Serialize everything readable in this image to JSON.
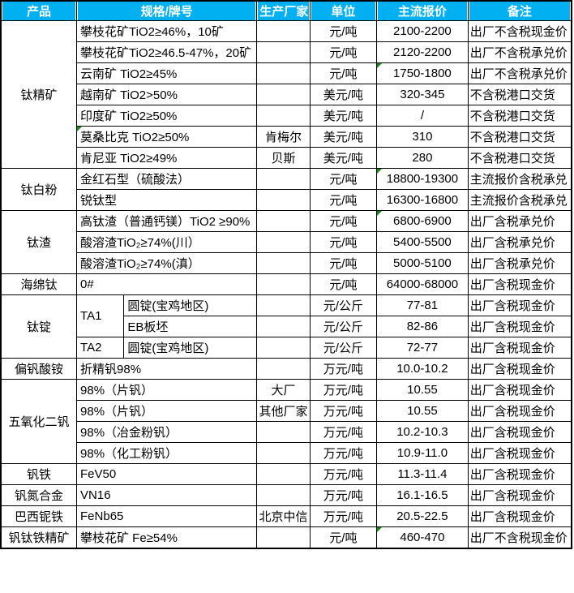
{
  "colors": {
    "header_bg": "#00B0F0",
    "header_text": "#ffffff",
    "grid": "#000000",
    "flag": "#128912"
  },
  "table": {
    "headers": [
      "产品",
      "规格/牌号",
      "生产厂家",
      "单位",
      "主流报价",
      "备注"
    ]
  },
  "groups": [
    {
      "product": "钛精矿",
      "rows": [
        {
          "spec": "攀枝花矿TiO2≥46%，10矿",
          "mfr": "",
          "unit": "元/吨",
          "price": "2100-2200",
          "note": "出厂不含税现金价"
        },
        {
          "spec": "攀枝花矿TiO2≥46.5-47%，20矿",
          "mfr": "",
          "unit": "元/吨",
          "price": "2120-2200",
          "note": "出厂不含税承兑价"
        },
        {
          "spec": "云南矿 TiO2≥45%",
          "mfr": "",
          "unit": "元/吨",
          "price": "1750-1800",
          "note": "出厂不含税承兑价",
          "flag": "comment-indicator-on-price"
        },
        {
          "spec": "越南矿 TiO2>50%",
          "mfr": "",
          "unit": "美元/吨",
          "price": "320-345",
          "note": "不含税港口交货"
        },
        {
          "spec": "印度矿 TiO2≥50%",
          "mfr": "",
          "unit": "美元/吨",
          "price": "/",
          "note": "不含税港口交货"
        },
        {
          "spec": "莫桑比克 TiO2≥50%",
          "mfr": "肯梅尔",
          "unit": "美元/吨",
          "price": "310",
          "note": "不含税港口交货",
          "flag": "comment-indicator-on-spec"
        },
        {
          "spec": "肯尼亚 TiO2≥49%",
          "mfr": "贝斯",
          "unit": "美元/吨",
          "price": "280",
          "note": "不含税港口交货"
        }
      ]
    },
    {
      "product": "钛白粉",
      "rows": [
        {
          "spec": "金红石型（硫酸法）",
          "mfr": "",
          "unit": "元/吨",
          "price": "18800-19300",
          "note": "主流报价含税承兑",
          "flag": "comment-indicator-on-price"
        },
        {
          "spec": "锐钛型",
          "mfr": "",
          "unit": "元/吨",
          "price": "16300-16800",
          "note": "主流报价含税承兑"
        }
      ]
    },
    {
      "product": "钛渣",
      "rows": [
        {
          "spec": "高钛渣（普通钙镁）TiO2 ≥90%",
          "mfr": "",
          "unit": "元/吨",
          "price": "6800-6900",
          "note": "出厂含税承兑价",
          "flag": "comment-indicator-on-price"
        },
        {
          "spec": "酸溶渣TiO₂≥74%(川）",
          "mfr": "",
          "unit": "元/吨",
          "price": "5400-5500",
          "note": "出厂含税承兑价"
        },
        {
          "spec": "酸溶渣TiO₂≥74%(滇）",
          "mfr": "",
          "unit": "元/吨",
          "price": "5000-5100",
          "note": "出厂含税承兑价"
        }
      ]
    },
    {
      "product": "海绵钛",
      "rows": [
        {
          "spec": "0#",
          "mfr": "",
          "unit": "元/吨",
          "price": "64000-68000",
          "note": "出厂含税现金价"
        }
      ]
    },
    {
      "product": "钛锭",
      "rows": [
        {
          "grade": "TA1",
          "spec": "圆锭(宝鸡地区)",
          "mfr": "",
          "unit": "元/公斤",
          "price": "77-81",
          "note": "出厂含税现金价"
        },
        {
          "spec": "EB板坯",
          "mfr": "",
          "unit": "元/公斤",
          "price": "82-86",
          "note": "出厂含税现金价"
        },
        {
          "grade": "TA2",
          "spec": "圆锭(宝鸡地区)",
          "mfr": "",
          "unit": "元/公斤",
          "price": "72-77",
          "note": "出厂含税现金价"
        }
      ]
    },
    {
      "product": "偏钒酸铵",
      "rows": [
        {
          "spec": "折精钒98%",
          "mfr": "",
          "unit": "万元/吨",
          "price": "10.0-10.2",
          "note": "出厂含税现金价"
        }
      ]
    },
    {
      "product": "五氧化二钒",
      "rows": [
        {
          "spec": "98%（片钒）",
          "mfr": "大厂",
          "unit": "万元/吨",
          "price": "10.55",
          "note": "出厂含税现金价"
        },
        {
          "spec": "98%（片钒）",
          "mfr": "其他厂家",
          "unit": "万元/吨",
          "price": "10.55",
          "note": "出厂含税现金价"
        },
        {
          "spec": "98%（冶金粉钒）",
          "mfr": "",
          "unit": "万元/吨",
          "price": "10.2-10.3",
          "note": "出厂含税现金价"
        },
        {
          "spec": "98%（化工粉钒）",
          "mfr": "",
          "unit": "万元/吨",
          "price": "10.9-11.0",
          "note": "出厂含税现金价"
        }
      ]
    },
    {
      "product": "钒铁",
      "rows": [
        {
          "spec": "FeV50",
          "mfr": "",
          "unit": "万元/吨",
          "price": "11.3-11.4",
          "note": "出厂含税现金价"
        }
      ]
    },
    {
      "product": "钒氮合金",
      "rows": [
        {
          "spec": "VN16",
          "mfr": "",
          "unit": "万元/吨",
          "price": "16.1-16.5",
          "note": "出厂含税现金价"
        }
      ]
    },
    {
      "product": "巴西铌铁",
      "rows": [
        {
          "spec": "FeNb65",
          "mfr": "北京中信",
          "unit": "万元/吨",
          "price": "20.5-22.5",
          "note": "出厂含税现金价"
        }
      ]
    },
    {
      "product": "钒钛铁精矿",
      "rows": [
        {
          "spec": "攀枝花矿 Fe≥54%",
          "mfr": "",
          "unit": "元/吨",
          "price": "460-470",
          "note": "出厂不含税现金价",
          "flag": "comment-indicator-on-price"
        }
      ]
    }
  ]
}
